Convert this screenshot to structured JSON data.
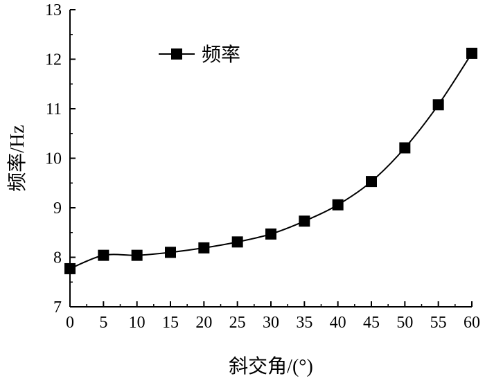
{
  "chart_data": {
    "type": "line",
    "xlabel": "斜交角/(°)",
    "ylabel": "频率/Hz",
    "xlim": [
      0,
      60
    ],
    "ylim": [
      7,
      13
    ],
    "xticks": [
      0,
      5,
      10,
      15,
      20,
      25,
      30,
      35,
      40,
      45,
      50,
      55,
      60
    ],
    "yticks": [
      7,
      8,
      9,
      10,
      11,
      12,
      13
    ],
    "legend_position": "top-left",
    "grid": false,
    "series": [
      {
        "name": "频率",
        "marker": "square",
        "color": "#000000",
        "x": [
          0,
          5,
          10,
          15,
          20,
          25,
          30,
          35,
          40,
          45,
          50,
          55,
          60
        ],
        "y": [
          7.77,
          8.04,
          8.04,
          8.1,
          8.19,
          8.31,
          8.47,
          8.73,
          9.06,
          9.53,
          10.21,
          11.08,
          12.12
        ]
      }
    ]
  }
}
